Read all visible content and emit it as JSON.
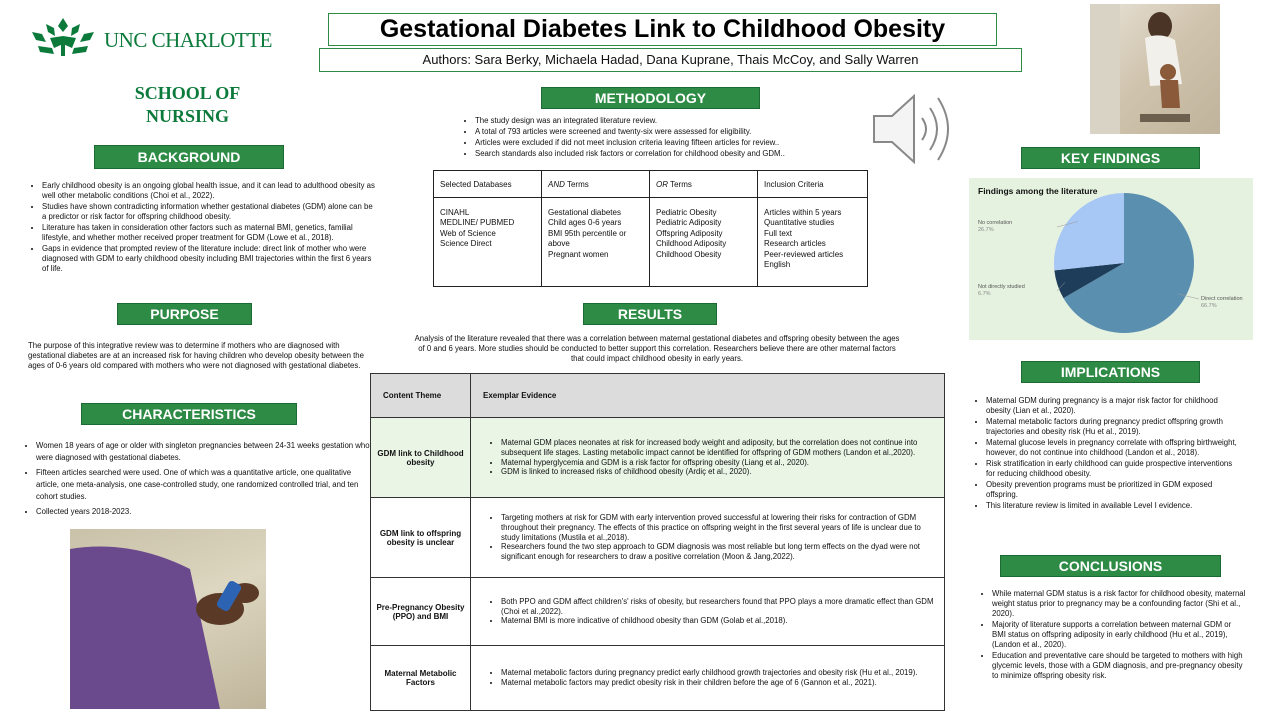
{
  "logo": {
    "text": "UNC CHARLOTTE"
  },
  "school": "SCHOOL OF NURSING",
  "title": "Gestational Diabetes Link to Childhood Obesity",
  "authors": "Authors: Sara Berky, Michaela Hadad, Dana Kuprane, Thais McCoy, and Sally Warren",
  "background": {
    "header": "BACKGROUND",
    "items": [
      "Early childhood obesity is an ongoing global health issue, and it can lead to adulthood obesity as well other metabolic conditions (Choi et al., 2022).",
      "Studies have shown contradicting information whether gestational diabetes (GDM) alone can be a predictor or risk factor for offspring childhood obesity.",
      " Literature has taken in consideration other factors such as maternal BMI, genetics, familial lifestyle, and whether mother received proper treatment for GDM (Lowe et al., 2018).",
      "Gaps in evidence that prompted review of the literature include: direct link of mother who were diagnosed with GDM to early childhood obesity including BMI trajectories within the first 6 years of life."
    ]
  },
  "purpose": {
    "header": "PURPOSE",
    "text": "The purpose of this integrative review was to determine if mothers who are diagnosed with gestational diabetes are at an increased risk for having children who develop obesity between the ages of 0-6 years old compared with mothers who were not diagnosed with gestational diabetes."
  },
  "characteristics": {
    "header": "CHARACTERISTICS",
    "items": [
      "Women 18 years of age or older with singleton pregnancies between 24-31 weeks gestation who were diagnosed with gestational diabetes.",
      "Fifteen articles searched were used. One of which was a quantitative article, one qualitative article, one meta-analysis, one case-controlled study, one randomized controlled trial, and ten cohort studies.",
      "Collected years 2018-2023."
    ]
  },
  "methodology": {
    "header": "METHODOLOGY",
    "items": [
      "The study design was an integrated literature review.",
      "A total of 793 articles were screened and twenty-six were assessed for eligibility.",
      "Articles were excluded if did not meet inclusion criteria leaving fifteen articles for review..",
      "Search standards also included risk factors or correlation for childhood obesity and GDM.."
    ],
    "table": {
      "headers": {
        "db": "Selected Databases",
        "and_em": "AND",
        "and_rest": " Terms",
        "or_em": "OR",
        "or_rest": " Terms",
        "inc": "Inclusion Criteria"
      },
      "databases": [
        "CINAHL",
        "MEDLINE/ PUBMED",
        "Web of Science",
        "Science Direct"
      ],
      "and_terms": [
        "Gestational diabetes",
        "Child ages 0-6 years",
        "BMI 95th percentile or above",
        "Pregnant women"
      ],
      "or_terms": [
        "Pediatric Obesity",
        "Pediatric Adiposity",
        "Offspring Adiposity",
        "Childhood Adiposity",
        "Childhood Obesity"
      ],
      "inclusion": [
        "Articles within 5 years",
        "Quantitative studies",
        "Full text",
        "Research articles",
        "Peer-reviewed articles",
        "English"
      ]
    }
  },
  "results": {
    "header": "RESULTS",
    "intro": "Analysis of the literature revealed that there was a correlation between maternal gestational diabetes and offspring obesity between the ages of 0 and 6 years. More studies should be conducted to better support this correlation. Researchers believe there are other maternal factors that could impact childhood obesity in early years.",
    "col_theme": "Content Theme",
    "col_evidence": "Exemplar Evidence",
    "rows": [
      {
        "theme": "GDM link to Childhood obesity",
        "evidence": [
          "Maternal GDM places neonates at risk for increased body weight and adiposity, but the correlation does not continue into subsequent life stages. Lasting metabolic impact cannot be identified for offspring of GDM mothers (Landon et al.,2020).",
          "Maternal hyperglycemia and GDM is a risk factor for offspring obesity (Liang et al., 2020).",
          "GDM is linked to increased risks of childhood obesity (Ardiç et al., 2020)."
        ]
      },
      {
        "theme": "GDM link to offspring obesity is unclear",
        "evidence": [
          "Targeting mothers at risk for GDM with early intervention proved successful at lowering their risks for contraction of GDM throughout their pregnancy. The effects of this practice on offspring weight in the first several years of life is unclear due to study limitations (Mustila et al.,2018).",
          "Researchers found the two step approach to GDM diagnosis was most reliable but long term effects on the dyad were not significant enough for researchers to draw a positive correlation (Moon & Jang,2022)."
        ]
      },
      {
        "theme": "Pre-Pregnancy Obesity (PPO) and BMI",
        "evidence": [
          "Both PPO and GDM affect children's' risks of obesity, but researchers found that PPO plays a more dramatic effect than GDM (Choi et al.,2022).",
          "Maternal BMI is more indicative of childhood obesity than GDM (Golab et al.,2018)."
        ]
      },
      {
        "theme": "Maternal Metabolic Factors",
        "evidence": [
          "Maternal metabolic factors during pregnancy predict early childhood growth trajectories and obesity risk (Hu et al., 2019).",
          "Maternal metabolic factors may predict obesity risk in their children before the age of 6 (Gannon et al., 2021)."
        ]
      }
    ]
  },
  "key_findings": {
    "header": "KEY FINDINGS",
    "chart_title": "Findings among the literature"
  },
  "chart_data": {
    "type": "pie",
    "title": "Findings among the literature",
    "slices": [
      {
        "label": "Direct correlation",
        "value": 66.7,
        "display": "66.7%",
        "color": "#5b8fb0"
      },
      {
        "label": "Not directly studied",
        "value": 6.7,
        "display": "6.7%",
        "color": "#1e3d5a"
      },
      {
        "label": "No correlation",
        "value": 26.7,
        "display": "26.7%",
        "color": "#a7c7f5"
      }
    ]
  },
  "implications": {
    "header": "IMPLICATIONS",
    "items": [
      "Maternal GDM  during pregnancy is a major risk factor for childhood obesity (Lian et al., 2020).",
      "Maternal metabolic factors during pregnancy predict offspring growth trajectories and obesity risk (Hu et al., 2019).",
      "Maternal glucose levels in pregnancy correlate with offspring birthweight, however, do not continue into childhood (Landon et al., 2018).",
      "Risk stratification in early childhood can guide prospective interventions for reducing childhood obesity.",
      "Obesity prevention programs must be prioritized in GDM exposed offspring.",
      "This literature review is limited in available Level I evidence."
    ]
  },
  "conclusions": {
    "header": "CONCLUSIONS",
    "items": [
      "While maternal GDM status is a risk factor for childhood obesity, maternal weight status prior to pregnancy may be a confounding factor (Shi et al., 2020).",
      "Majority of literature supports a correlation between maternal GDM or BMI status on offspring adiposity in early childhood (Hu et al., 2019), (Landon et al., 2020).",
      "Education and preventative care should be targeted to mothers with high glycemic levels, those with a GDM diagnosis, and pre-pregnancy obesity to minimize offspring obesity risk."
    ]
  },
  "icons": {
    "logo": "unc-charlotte-crown-logo",
    "speaker": "speaker-audio-icon",
    "photo_mother": "mother-child-photo",
    "photo_glucose": "glucose-test-photo"
  }
}
